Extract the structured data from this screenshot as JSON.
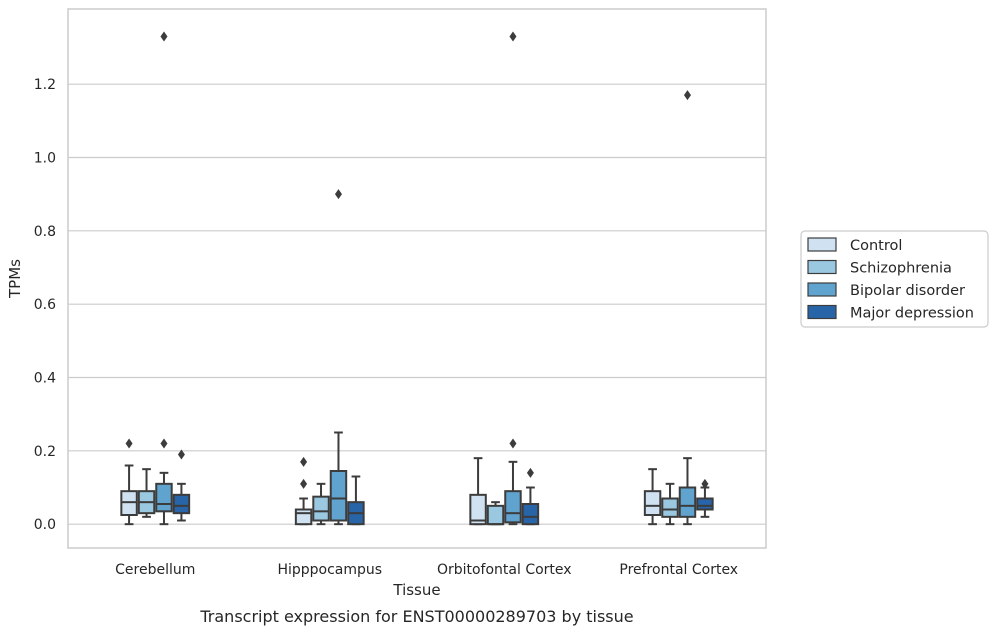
{
  "caption": "Transcript expression for ENST00000289703 by tissue",
  "chart_data": {
    "type": "boxplot",
    "xlabel": "Tissue",
    "ylabel": "TPMs",
    "ylim": [
      -0.065,
      1.405
    ],
    "yticks": [
      0.0,
      0.2,
      0.4,
      0.6,
      0.8,
      1.0,
      1.2
    ],
    "ytick_labels": [
      "0.0",
      "0.2",
      "0.4",
      "0.6",
      "0.8",
      "1.0",
      "1.2"
    ],
    "grid": "horizontal",
    "legend_position": "right",
    "categories": [
      "Cerebellum",
      "Hipppocampus",
      "Orbitofontal Cortex",
      "Prefrontal Cortex"
    ],
    "series": [
      {
        "name": "Control",
        "color": "#d0e2f2",
        "boxes": [
          {
            "whisker_low": 0.0,
            "q1": 0.025,
            "median": 0.06,
            "q3": 0.09,
            "whisker_high": 0.16,
            "outliers": [
              0.22
            ]
          },
          {
            "whisker_low": 0.0,
            "q1": 0.0,
            "median": 0.03,
            "q3": 0.04,
            "whisker_high": 0.07,
            "outliers": [
              0.11,
              0.17
            ]
          },
          {
            "whisker_low": 0.0,
            "q1": 0.0,
            "median": 0.01,
            "q3": 0.08,
            "whisker_high": 0.18,
            "outliers": []
          },
          {
            "whisker_low": 0.0,
            "q1": 0.025,
            "median": 0.05,
            "q3": 0.09,
            "whisker_high": 0.15,
            "outliers": []
          }
        ]
      },
      {
        "name": "Schizophrenia",
        "color": "#9ac8e0",
        "boxes": [
          {
            "whisker_low": 0.02,
            "q1": 0.03,
            "median": 0.06,
            "q3": 0.09,
            "whisker_high": 0.15,
            "outliers": []
          },
          {
            "whisker_low": 0.0,
            "q1": 0.01,
            "median": 0.035,
            "q3": 0.075,
            "whisker_high": 0.11,
            "outliers": []
          },
          {
            "whisker_low": 0.0,
            "q1": 0.0,
            "median": 0.0,
            "q3": 0.05,
            "whisker_high": 0.06,
            "outliers": []
          },
          {
            "whisker_low": 0.0,
            "q1": 0.02,
            "median": 0.04,
            "q3": 0.07,
            "whisker_high": 0.11,
            "outliers": []
          }
        ]
      },
      {
        "name": "Bipolar disorder",
        "color": "#5fa3ce",
        "boxes": [
          {
            "whisker_low": 0.0,
            "q1": 0.035,
            "median": 0.055,
            "q3": 0.11,
            "whisker_high": 0.14,
            "outliers": [
              0.22,
              1.33
            ]
          },
          {
            "whisker_low": 0.0,
            "q1": 0.01,
            "median": 0.07,
            "q3": 0.145,
            "whisker_high": 0.25,
            "outliers": [
              0.9
            ]
          },
          {
            "whisker_low": 0.0,
            "q1": 0.005,
            "median": 0.03,
            "q3": 0.09,
            "whisker_high": 0.17,
            "outliers": [
              0.22,
              1.33
            ]
          },
          {
            "whisker_low": 0.0,
            "q1": 0.02,
            "median": 0.05,
            "q3": 0.1,
            "whisker_high": 0.18,
            "outliers": [
              1.17
            ]
          }
        ]
      },
      {
        "name": "Major depression",
        "color": "#2865a8",
        "boxes": [
          {
            "whisker_low": 0.01,
            "q1": 0.03,
            "median": 0.05,
            "q3": 0.08,
            "whisker_high": 0.11,
            "outliers": [
              0.19
            ]
          },
          {
            "whisker_low": 0.0,
            "q1": 0.0,
            "median": 0.03,
            "q3": 0.06,
            "whisker_high": 0.13,
            "outliers": []
          },
          {
            "whisker_low": 0.0,
            "q1": 0.0,
            "median": 0.02,
            "q3": 0.055,
            "whisker_high": 0.1,
            "outliers": [
              0.14
            ]
          },
          {
            "whisker_low": 0.02,
            "q1": 0.04,
            "median": 0.05,
            "q3": 0.07,
            "whisker_high": 0.1,
            "outliers": [
              0.11
            ]
          }
        ]
      }
    ]
  }
}
